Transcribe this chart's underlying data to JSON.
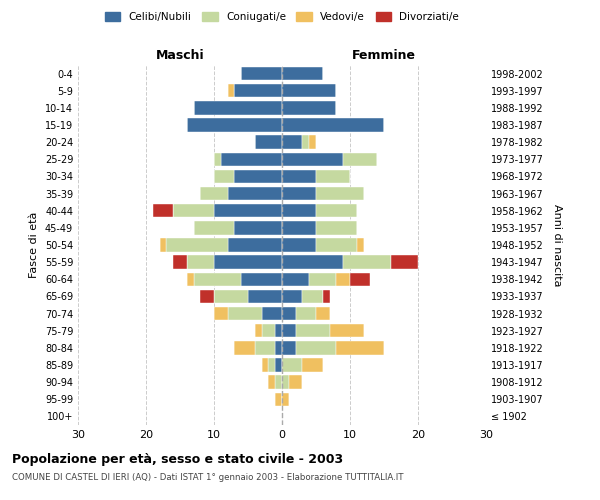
{
  "age_groups": [
    "100+",
    "95-99",
    "90-94",
    "85-89",
    "80-84",
    "75-79",
    "70-74",
    "65-69",
    "60-64",
    "55-59",
    "50-54",
    "45-49",
    "40-44",
    "35-39",
    "30-34",
    "25-29",
    "20-24",
    "15-19",
    "10-14",
    "5-9",
    "0-4"
  ],
  "birth_years": [
    "≤ 1902",
    "1903-1907",
    "1908-1912",
    "1913-1917",
    "1918-1922",
    "1923-1927",
    "1928-1932",
    "1933-1937",
    "1938-1942",
    "1943-1947",
    "1948-1952",
    "1953-1957",
    "1958-1962",
    "1963-1967",
    "1968-1972",
    "1973-1977",
    "1978-1982",
    "1983-1987",
    "1988-1992",
    "1993-1997",
    "1998-2002"
  ],
  "males": {
    "celibi": [
      0,
      0,
      0,
      1,
      1,
      1,
      3,
      5,
      6,
      10,
      8,
      7,
      10,
      8,
      7,
      9,
      4,
      14,
      13,
      7,
      6
    ],
    "coniugati": [
      0,
      0,
      1,
      1,
      3,
      2,
      5,
      5,
      7,
      4,
      9,
      6,
      6,
      4,
      3,
      1,
      0,
      0,
      0,
      0,
      0
    ],
    "vedovi": [
      0,
      1,
      1,
      1,
      3,
      1,
      2,
      0,
      1,
      0,
      1,
      0,
      0,
      0,
      0,
      0,
      0,
      0,
      0,
      1,
      0
    ],
    "divorziati": [
      0,
      0,
      0,
      0,
      0,
      0,
      0,
      2,
      0,
      2,
      0,
      0,
      3,
      0,
      0,
      0,
      0,
      0,
      0,
      0,
      0
    ]
  },
  "females": {
    "celibi": [
      0,
      0,
      0,
      0,
      2,
      2,
      2,
      3,
      4,
      9,
      5,
      5,
      5,
      5,
      5,
      9,
      3,
      15,
      8,
      8,
      6
    ],
    "coniugati": [
      0,
      0,
      1,
      3,
      6,
      5,
      3,
      3,
      4,
      7,
      6,
      6,
      6,
      7,
      5,
      5,
      1,
      0,
      0,
      0,
      0
    ],
    "vedovi": [
      0,
      1,
      2,
      3,
      7,
      5,
      2,
      0,
      2,
      0,
      1,
      0,
      0,
      0,
      0,
      0,
      1,
      0,
      0,
      0,
      0
    ],
    "divorziati": [
      0,
      0,
      0,
      0,
      0,
      0,
      0,
      1,
      3,
      4,
      0,
      0,
      0,
      0,
      0,
      0,
      0,
      0,
      0,
      0,
      0
    ]
  },
  "colors": {
    "celibi": "#3d6d9e",
    "coniugati": "#c5d9a0",
    "vedovi": "#f0c060",
    "divorziati": "#c0302a"
  },
  "legend_labels": [
    "Celibi/Nubili",
    "Coniugati/e",
    "Vedovi/e",
    "Divorziati/e"
  ],
  "title": "Popolazione per età, sesso e stato civile - 2003",
  "subtitle": "COMUNE DI CASTEL DI IERI (AQ) - Dati ISTAT 1° gennaio 2003 - Elaborazione TUTTITALIA.IT",
  "xlabel_left": "Maschi",
  "xlabel_right": "Femmine",
  "ylabel_left": "Fasce di età",
  "ylabel_right": "Anni di nascita",
  "xlim": 30,
  "background_color": "#ffffff",
  "grid_color": "#cccccc"
}
